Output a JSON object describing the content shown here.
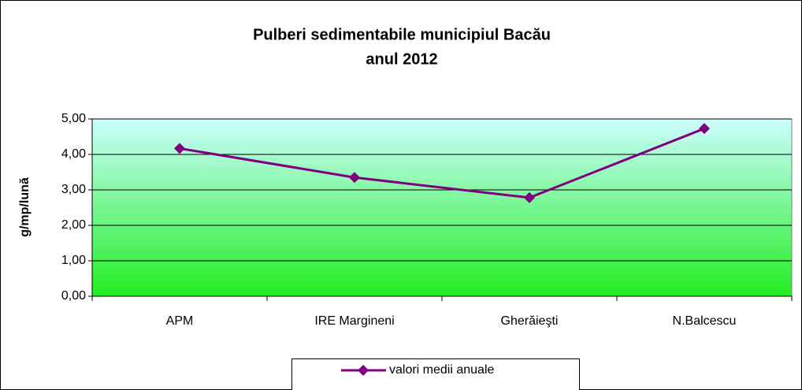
{
  "chart_data": {
    "type": "line",
    "title": [
      "Pulberi sedimentabile municipiul Bacău",
      "anul 2012"
    ],
    "y_label": "g/mp/lună",
    "categories": [
      "APM",
      "IRE Margineni",
      "Gherăieşti",
      "N.Balcescu"
    ],
    "series": [
      {
        "name": "valori medii anuale",
        "color": "#800080",
        "values": [
          4.17,
          3.35,
          2.78,
          4.73
        ]
      }
    ],
    "ylim": [
      0,
      5
    ],
    "yticks": [
      {
        "value": 0,
        "label": "0,00"
      },
      {
        "value": 1,
        "label": "1,00"
      },
      {
        "value": 2,
        "label": "2,00"
      },
      {
        "value": 3,
        "label": "3,00"
      },
      {
        "value": 4,
        "label": "4,00"
      },
      {
        "value": 5,
        "label": "5,00"
      }
    ],
    "grid": true,
    "legend": "bottom"
  }
}
